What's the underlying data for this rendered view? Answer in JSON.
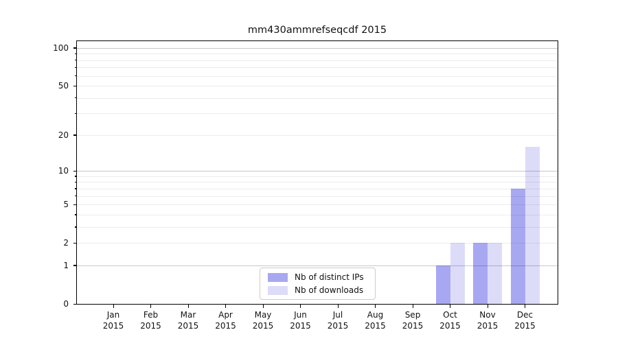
{
  "chart_data": {
    "type": "bar",
    "title": "mm430ammrefseqcdf 2015",
    "x_categories": [
      {
        "month": "Jan",
        "year": "2015"
      },
      {
        "month": "Feb",
        "year": "2015"
      },
      {
        "month": "Mar",
        "year": "2015"
      },
      {
        "month": "Apr",
        "year": "2015"
      },
      {
        "month": "May",
        "year": "2015"
      },
      {
        "month": "Jun",
        "year": "2015"
      },
      {
        "month": "Jul",
        "year": "2015"
      },
      {
        "month": "Aug",
        "year": "2015"
      },
      {
        "month": "Sep",
        "year": "2015"
      },
      {
        "month": "Oct",
        "year": "2015"
      },
      {
        "month": "Nov",
        "year": "2015"
      },
      {
        "month": "Dec",
        "year": "2015"
      }
    ],
    "series": [
      {
        "name": "Nb of distinct IPs",
        "color": "#a8a8f2",
        "values": [
          0,
          0,
          0,
          0,
          0,
          0,
          0,
          0,
          0,
          1,
          2,
          7
        ]
      },
      {
        "name": "Nb of downloads",
        "color": "#dcdcf9",
        "values": [
          0,
          0,
          0,
          0,
          0,
          0,
          0,
          0,
          0,
          2,
          2,
          16
        ]
      }
    ],
    "y_axis": {
      "scale": "log1p",
      "lim": [
        0,
        113
      ],
      "major_ticks": [
        0,
        1,
        2,
        5,
        10,
        20,
        50,
        100
      ],
      "tick_labels": [
        "0",
        "1",
        "2",
        "5",
        "10",
        "20",
        "50",
        "100"
      ],
      "major_gridlines": [
        1,
        10,
        100
      ],
      "minor_gridlines": [
        2,
        3,
        4,
        5,
        6,
        7,
        8,
        9,
        20,
        30,
        40,
        50,
        60,
        70,
        80,
        90
      ]
    },
    "grid": true,
    "legend": {
      "position": "inside-bottom-center",
      "entries": [
        "Nb of distinct IPs",
        "Nb of downloads"
      ]
    }
  },
  "colors": {
    "background": "#ffffff",
    "spine": "#000000",
    "grid_major": "rgba(0,0,0,0.22)",
    "grid_minor": "rgba(0,0,0,0.075)",
    "text": "#111111",
    "legend_border": "#cccccc"
  }
}
